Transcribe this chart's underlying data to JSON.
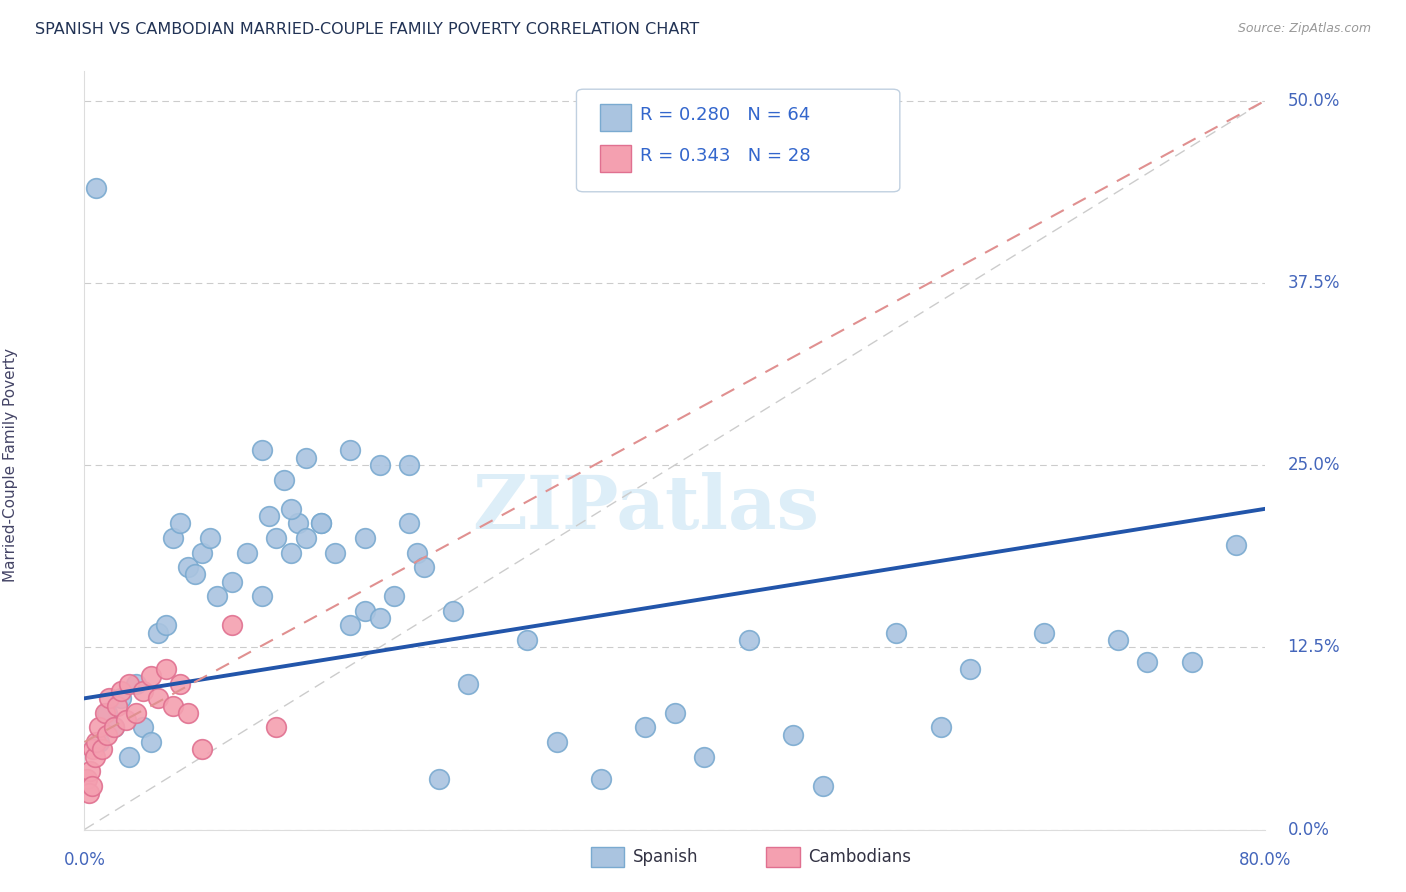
{
  "title": "SPANISH VS CAMBODIAN MARRIED-COUPLE FAMILY POVERTY CORRELATION CHART",
  "source": "Source: ZipAtlas.com",
  "ylabel": "Married-Couple Family Poverty",
  "ytick_labels": [
    "0.0%",
    "12.5%",
    "25.0%",
    "37.5%",
    "50.0%"
  ],
  "ytick_values": [
    0.0,
    12.5,
    25.0,
    37.5,
    50.0
  ],
  "xtick_label_left": "0.0%",
  "xtick_label_right": "80.0%",
  "xlim": [
    0.0,
    80.0
  ],
  "ylim": [
    0.0,
    52.0
  ],
  "spanish_R": "0.280",
  "spanish_N": "64",
  "cambodian_R": "0.343",
  "cambodian_N": "28",
  "spanish_color": "#aac4e0",
  "cambodian_color": "#f4a0b0",
  "spanish_edge_color": "#7aaad0",
  "cambodian_edge_color": "#e07090",
  "trend_spanish_color": "#2255aa",
  "trend_cambodian_color": "#e09090",
  "diagonal_color": "#cccccc",
  "watermark_color": "#ddeef8",
  "sp_x": [
    1.0,
    1.5,
    2.0,
    2.5,
    3.0,
    3.5,
    4.0,
    4.5,
    5.0,
    5.5,
    6.0,
    6.5,
    7.0,
    7.5,
    8.0,
    8.5,
    9.0,
    10.0,
    11.0,
    12.0,
    13.0,
    14.0,
    14.5,
    15.0,
    16.0,
    17.0,
    18.0,
    19.0,
    20.0,
    21.0,
    22.0,
    22.5,
    23.0,
    24.0,
    25.0,
    26.0,
    30.0,
    32.0,
    35.0,
    38.0,
    40.0,
    42.0,
    45.0,
    48.0,
    50.0,
    55.0,
    58.0,
    60.0,
    65.0,
    70.0,
    72.0,
    75.0,
    78.0,
    12.0,
    13.5,
    15.0,
    18.0,
    20.0,
    22.0,
    12.5,
    14.0,
    16.0,
    19.0,
    0.8
  ],
  "sp_y": [
    6.0,
    8.0,
    7.0,
    9.0,
    5.0,
    10.0,
    7.0,
    6.0,
    13.5,
    14.0,
    20.0,
    21.0,
    18.0,
    17.5,
    19.0,
    20.0,
    16.0,
    17.0,
    19.0,
    16.0,
    20.0,
    19.0,
    21.0,
    20.0,
    21.0,
    19.0,
    14.0,
    15.0,
    14.5,
    16.0,
    21.0,
    19.0,
    18.0,
    3.5,
    15.0,
    10.0,
    13.0,
    6.0,
    3.5,
    7.0,
    8.0,
    5.0,
    13.0,
    6.5,
    3.0,
    13.5,
    7.0,
    11.0,
    13.5,
    13.0,
    11.5,
    11.5,
    19.5,
    26.0,
    24.0,
    25.5,
    26.0,
    25.0,
    25.0,
    21.5,
    22.0,
    21.0,
    20.0,
    44.0
  ],
  "cb_x": [
    0.2,
    0.3,
    0.4,
    0.5,
    0.6,
    0.7,
    0.8,
    1.0,
    1.2,
    1.4,
    1.5,
    1.7,
    2.0,
    2.2,
    2.5,
    2.8,
    3.0,
    3.5,
    4.0,
    4.5,
    5.0,
    5.5,
    6.0,
    6.5,
    7.0,
    8.0,
    10.0,
    13.0
  ],
  "cb_y": [
    3.5,
    2.5,
    4.0,
    3.0,
    5.5,
    5.0,
    6.0,
    7.0,
    5.5,
    8.0,
    6.5,
    9.0,
    7.0,
    8.5,
    9.5,
    7.5,
    10.0,
    8.0,
    9.5,
    10.5,
    9.0,
    11.0,
    8.5,
    10.0,
    8.0,
    5.5,
    14.0,
    7.0
  ],
  "trend_sp_x0": 0.0,
  "trend_sp_y0": 9.0,
  "trend_sp_x1": 80.0,
  "trend_sp_y1": 22.0,
  "trend_cb_x0": 0.0,
  "trend_cb_y0": 6.0,
  "trend_cb_x1": 80.0,
  "trend_cb_y1": 50.0
}
